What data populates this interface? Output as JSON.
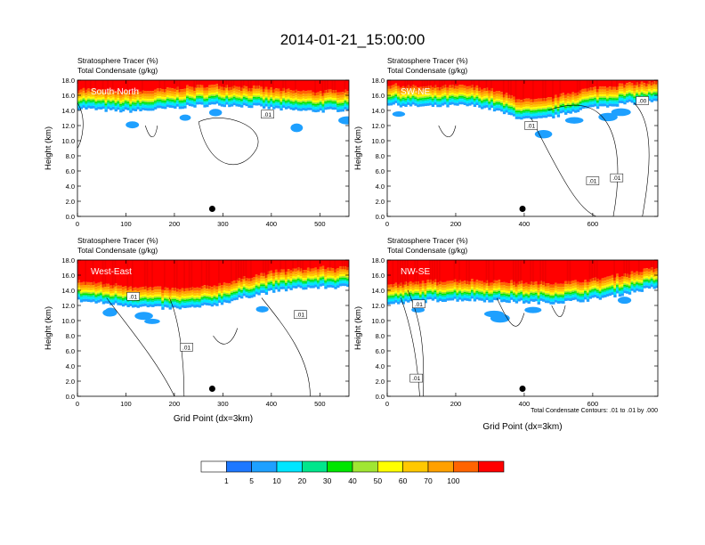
{
  "figure": {
    "title": "2014-01-21_15:00:00",
    "contour_note": "Total Condensate Contours: .01 to .01 by .000"
  },
  "chart_data": [
    {
      "type": "heatmap",
      "panel_label": "South-North",
      "header_lines": [
        "Stratosphere Tracer   (%)",
        "Total Condensate   (g/kg)"
      ],
      "ylabel": "Height (km)",
      "xlabel": "",
      "xlim": [
        0,
        560
      ],
      "ylim": [
        0,
        18
      ],
      "xticks": [
        0,
        100,
        200,
        300,
        400,
        500
      ],
      "yticks": [
        "0.0",
        "2.0",
        "4.0",
        "6.0",
        "8.0",
        "10.0",
        "12.0",
        "14.0",
        "16.0",
        "18.0"
      ],
      "marker": {
        "x": 278,
        "y": 1.0
      },
      "contour_labels": [
        {
          "text": ".01",
          "x": 392,
          "y": 13.5
        }
      ]
    },
    {
      "type": "heatmap",
      "panel_label": "SW-NE",
      "header_lines": [
        "Stratosphere Tracer   (%)",
        "Total Condensate   (g/kg)"
      ],
      "ylabel": "Height (km)",
      "xlabel": "",
      "xlim": [
        0,
        790
      ],
      "ylim": [
        0,
        18
      ],
      "xticks": [
        0,
        200,
        400,
        600
      ],
      "yticks": [
        "0.0",
        "2.0",
        "4.0",
        "6.0",
        "8.0",
        "10.0",
        "12.0",
        "14.0",
        "16.0",
        "18.0"
      ],
      "marker": {
        "x": 395,
        "y": 1.0
      },
      "contour_labels": [
        {
          "text": ".01",
          "x": 420,
          "y": 12.0
        },
        {
          "text": ".00",
          "x": 745,
          "y": 15.3
        },
        {
          "text": ".01",
          "x": 600,
          "y": 4.7
        },
        {
          "text": ".01",
          "x": 670,
          "y": 5.1
        }
      ]
    },
    {
      "type": "heatmap",
      "panel_label": "West-East",
      "header_lines": [
        "Stratosphere Tracer   (%)",
        "Total Condensate   (g/kg)"
      ],
      "ylabel": "Height (km)",
      "xlabel": "Grid Point (dx=3km)",
      "xlim": [
        0,
        560
      ],
      "ylim": [
        0,
        18
      ],
      "xticks": [
        0,
        100,
        200,
        300,
        400,
        500
      ],
      "yticks": [
        "0.0",
        "2.0",
        "4.0",
        "6.0",
        "8.0",
        "10.0",
        "12.0",
        "14.0",
        "16.0",
        "18.0"
      ],
      "marker": {
        "x": 278,
        "y": 1.0
      },
      "contour_labels": [
        {
          "text": ".01",
          "x": 115,
          "y": 13.2
        },
        {
          "text": ".01",
          "x": 225,
          "y": 6.5
        },
        {
          "text": ".01",
          "x": 460,
          "y": 10.8
        }
      ]
    },
    {
      "type": "heatmap",
      "panel_label": "NW-SE",
      "header_lines": [
        "Stratosphere Tracer   (%)",
        "Total Condensate   (g/kg)"
      ],
      "ylabel": "Height (km)",
      "xlabel": "Grid Point (dx=3km)",
      "xlim": [
        0,
        790
      ],
      "ylim": [
        0,
        18
      ],
      "xticks": [
        0,
        200,
        400,
        600
      ],
      "yticks": [
        "0.0",
        "2.0",
        "4.0",
        "6.0",
        "8.0",
        "10.0",
        "12.0",
        "14.0",
        "16.0",
        "18.0"
      ],
      "marker": {
        "x": 395,
        "y": 1.0
      },
      "contour_labels": [
        {
          "text": ".01",
          "x": 92,
          "y": 12.2
        },
        {
          "text": ".01",
          "x": 85,
          "y": 2.4
        }
      ]
    }
  ],
  "colorbar": {
    "labels": [
      "1",
      "5",
      "10",
      "20",
      "30",
      "40",
      "50",
      "60",
      "70",
      "100"
    ],
    "colors": [
      "#ffffff",
      "#1e78ff",
      "#1ea0ff",
      "#00e6ff",
      "#00e68c",
      "#00e600",
      "#a0e632",
      "#ffff00",
      "#ffc800",
      "#ffa000",
      "#ff6400",
      "#ff0000"
    ]
  }
}
